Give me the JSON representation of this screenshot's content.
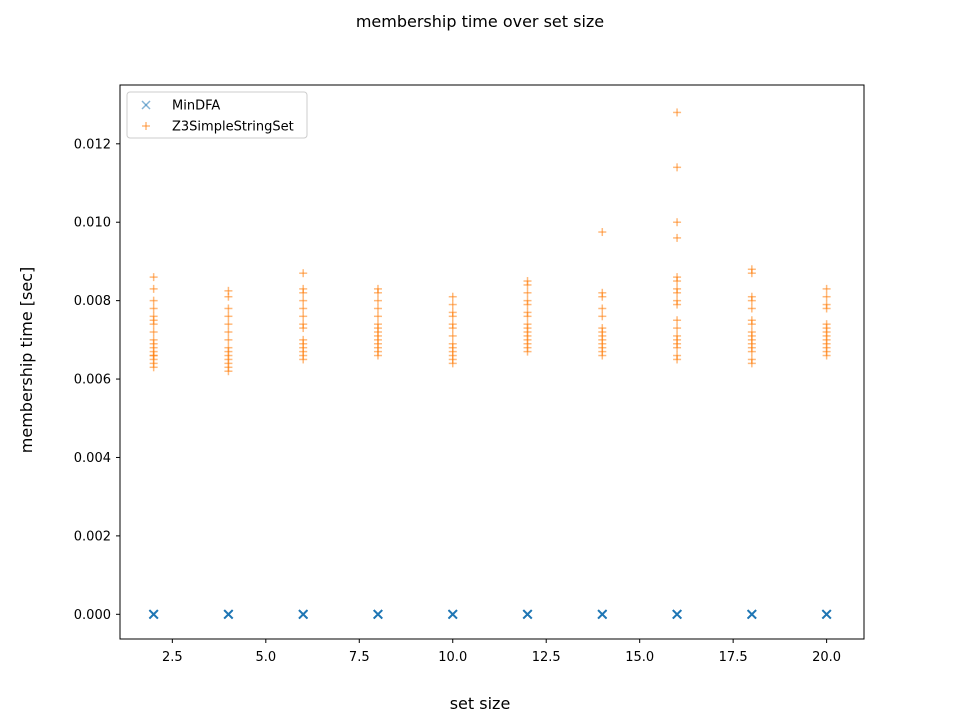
{
  "chart_data": {
    "type": "scatter",
    "title": "membership time over set size",
    "xlabel": "set size",
    "ylabel": "membership time [sec]",
    "xlim": [
      1.1,
      21.0
    ],
    "ylim": [
      -0.00063,
      0.0135
    ],
    "x_ticks": [
      2.5,
      5.0,
      7.5,
      10.0,
      12.5,
      15.0,
      17.5,
      20.0
    ],
    "x_tick_labels": [
      "2.5",
      "5.0",
      "7.5",
      "10.0",
      "12.5",
      "15.0",
      "17.5",
      "20.0"
    ],
    "y_ticks": [
      0,
      0.002,
      0.004,
      0.006,
      0.008,
      0.01,
      0.012
    ],
    "y_tick_labels": [
      "0.000",
      "0.002",
      "0.004",
      "0.006",
      "0.008",
      "0.010",
      "0.012"
    ],
    "grid": false,
    "legend_position": "top-left",
    "series": [
      {
        "name": "MinDFA",
        "marker": "x",
        "color": "#1f77b4",
        "points": [
          {
            "x": 2,
            "y": [
              0,
              0,
              0,
              0,
              0,
              0
            ]
          },
          {
            "x": 4,
            "y": [
              0,
              0,
              0,
              0,
              0,
              0
            ]
          },
          {
            "x": 6,
            "y": [
              0,
              0,
              0,
              0,
              0,
              0
            ]
          },
          {
            "x": 8,
            "y": [
              0,
              0,
              0,
              0,
              0,
              0
            ]
          },
          {
            "x": 10,
            "y": [
              0,
              0,
              0,
              0,
              0,
              0
            ]
          },
          {
            "x": 12,
            "y": [
              0,
              0,
              0,
              0,
              0,
              0
            ]
          },
          {
            "x": 14,
            "y": [
              0,
              0,
              0,
              0,
              0,
              0
            ]
          },
          {
            "x": 16,
            "y": [
              0,
              0,
              0,
              0,
              0,
              0
            ]
          },
          {
            "x": 18,
            "y": [
              0,
              0,
              0,
              0,
              0,
              0
            ]
          },
          {
            "x": 20,
            "y": [
              0,
              0,
              0,
              0,
              0,
              0
            ]
          }
        ]
      },
      {
        "name": "Z3SimpleStringSet",
        "marker": "+",
        "color": "#ff7f0e",
        "points": [
          {
            "x": 2,
            "y": [
              0.0086,
              0.0083,
              0.008,
              0.0078,
              0.0076,
              0.0075,
              0.0074,
              0.0072,
              0.007,
              0.0069,
              0.0068,
              0.0067,
              0.0066,
              0.0066,
              0.0065,
              0.0064,
              0.0063
            ]
          },
          {
            "x": 4,
            "y": [
              0.00825,
              0.0081,
              0.0078,
              0.0076,
              0.0074,
              0.0072,
              0.007,
              0.0068,
              0.0067,
              0.0066,
              0.0065,
              0.0064,
              0.0063,
              0.0062
            ]
          },
          {
            "x": 6,
            "y": [
              0.0087,
              0.0083,
              0.0082,
              0.008,
              0.0078,
              0.0076,
              0.0074,
              0.0073,
              0.007,
              0.0069,
              0.0068,
              0.0067,
              0.0066,
              0.0065
            ]
          },
          {
            "x": 8,
            "y": [
              0.0083,
              0.0082,
              0.008,
              0.0078,
              0.0076,
              0.0074,
              0.0073,
              0.0072,
              0.0071,
              0.007,
              0.0069,
              0.0068,
              0.0067,
              0.0066
            ]
          },
          {
            "x": 10,
            "y": [
              0.0081,
              0.0079,
              0.0077,
              0.0076,
              0.0074,
              0.0073,
              0.0071,
              0.0069,
              0.0068,
              0.0067,
              0.0066,
              0.0065,
              0.0064
            ]
          },
          {
            "x": 12,
            "y": [
              0.0085,
              0.0084,
              0.0082,
              0.008,
              0.0079,
              0.0077,
              0.0076,
              0.0074,
              0.0073,
              0.0072,
              0.0071,
              0.007,
              0.0069,
              0.0068,
              0.0067
            ]
          },
          {
            "x": 14,
            "y": [
              0.00975,
              0.0082,
              0.0081,
              0.0078,
              0.0076,
              0.0073,
              0.0072,
              0.0071,
              0.007,
              0.0069,
              0.0068,
              0.0067,
              0.0066
            ]
          },
          {
            "x": 16,
            "y": [
              0.0128,
              0.0114,
              0.01,
              0.0096,
              0.0086,
              0.0085,
              0.0083,
              0.0082,
              0.008,
              0.0079,
              0.0075,
              0.0073,
              0.0071,
              0.007,
              0.0069,
              0.0068,
              0.0066,
              0.0065
            ]
          },
          {
            "x": 18,
            "y": [
              0.0088,
              0.0087,
              0.0081,
              0.008,
              0.0078,
              0.0075,
              0.0074,
              0.0072,
              0.0071,
              0.007,
              0.0069,
              0.0068,
              0.0067,
              0.0065,
              0.0064
            ]
          },
          {
            "x": 20,
            "y": [
              0.0083,
              0.0081,
              0.0079,
              0.0078,
              0.0074,
              0.0073,
              0.0072,
              0.0071,
              0.007,
              0.0069,
              0.0068,
              0.0067,
              0.0066
            ]
          }
        ]
      }
    ]
  }
}
